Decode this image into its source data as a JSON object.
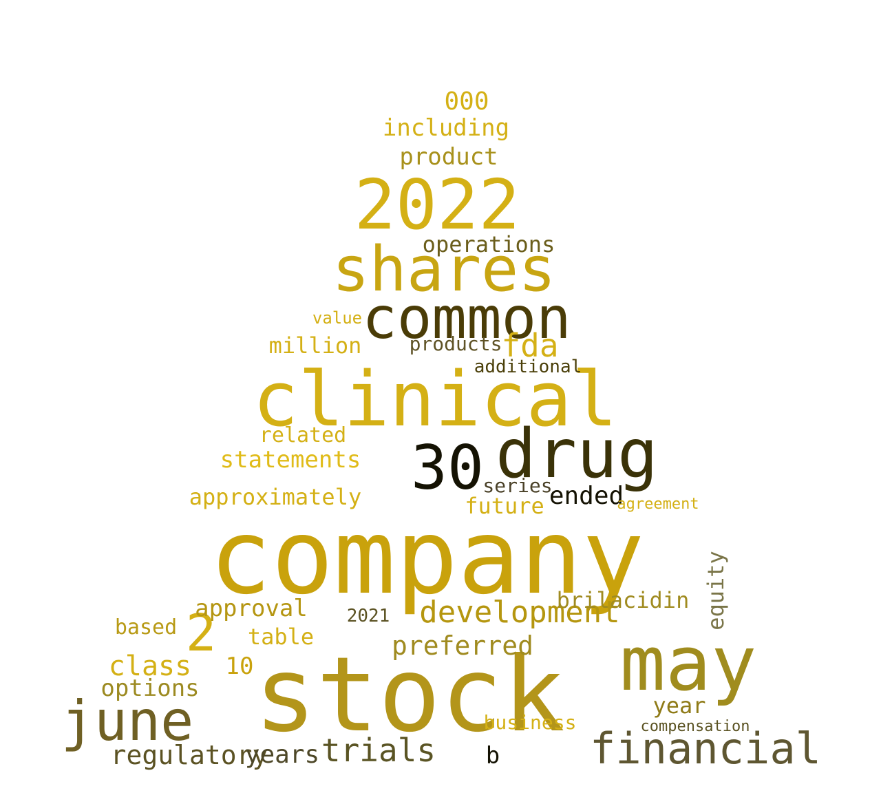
{
  "words": [
    {
      "text": "company",
      "color": "#c9a20c"
    },
    {
      "text": "stock",
      "color": "#b3951a"
    },
    {
      "text": "clinical",
      "color": "#d4b015"
    },
    {
      "text": "common",
      "color": "#4a3c07"
    },
    {
      "text": "shares",
      "color": "#c8a512"
    },
    {
      "text": "2022",
      "color": "#d4b015"
    },
    {
      "text": "may",
      "color": "#a08c1e"
    },
    {
      "text": "drug",
      "color": "#3a3208"
    },
    {
      "text": "30",
      "color": "#141203"
    },
    {
      "text": "financial",
      "color": "#5e5631"
    },
    {
      "text": "june",
      "color": "#6f6024"
    },
    {
      "text": "development",
      "color": "#b5960f"
    },
    {
      "text": "2",
      "color": "#d4b015"
    },
    {
      "text": "trials",
      "color": "#5a5424"
    },
    {
      "text": "regulatory",
      "color": "#5b5223"
    },
    {
      "text": "approximately",
      "color": "#d4b015"
    },
    {
      "text": "statements",
      "color": "#e0bb18"
    },
    {
      "text": "preferred",
      "color": "#a08b20"
    },
    {
      "text": "years",
      "color": "#4d4727"
    },
    {
      "text": "ended",
      "color": "#141203"
    },
    {
      "text": "fda",
      "color": "#d4b015"
    },
    {
      "text": "operations",
      "color": "#6a5d1a"
    },
    {
      "text": "options",
      "color": "#9c8a21"
    },
    {
      "text": "class",
      "color": "#d4b015"
    },
    {
      "text": "approval",
      "color": "#b59612"
    },
    {
      "text": "product",
      "color": "#a8911c"
    },
    {
      "text": "including",
      "color": "#d4b015"
    },
    {
      "text": "000",
      "color": "#d4b015"
    },
    {
      "text": "million",
      "color": "#d4b015"
    },
    {
      "text": "products",
      "color": "#5e5225"
    },
    {
      "text": "future",
      "color": "#d4b015"
    },
    {
      "text": "table",
      "color": "#d4b015"
    },
    {
      "text": "brilacidin",
      "color": "#a08b20"
    },
    {
      "text": "business",
      "color": "#d4b015"
    },
    {
      "text": "equity",
      "color": "#7a7548"
    },
    {
      "text": "year",
      "color": "#8f7b18"
    },
    {
      "text": "related",
      "color": "#d4b015"
    },
    {
      "text": "additional",
      "color": "#4a3f09"
    },
    {
      "text": "based",
      "color": "#b89a15"
    },
    {
      "text": "series",
      "color": "#4a4128"
    },
    {
      "text": "agreement",
      "color": "#d4b015"
    },
    {
      "text": "value",
      "color": "#d4b015"
    },
    {
      "text": "2021",
      "color": "#5b5223"
    },
    {
      "text": "10",
      "color": "#c9a20c"
    },
    {
      "text": "b",
      "color": "#141203"
    },
    {
      "text": "compensation",
      "color": "#5a5222"
    },
    {
      "text": "financial",
      "color": "#5e5631"
    }
  ]
}
